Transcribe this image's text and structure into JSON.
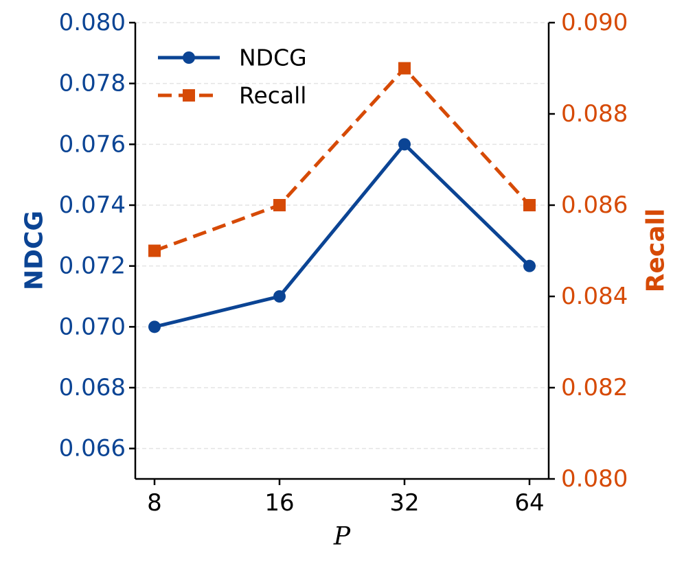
{
  "chart_data": {
    "type": "line",
    "categories": [
      "8",
      "16",
      "32",
      "64"
    ],
    "xlabel": "P",
    "left_axis": {
      "label": "NDCG",
      "ylim": [
        0.065,
        0.08
      ],
      "ticks": [
        "0.066",
        "0.068",
        "0.070",
        "0.072",
        "0.074",
        "0.076",
        "0.078",
        "0.080"
      ],
      "color": "#0b4494"
    },
    "right_axis": {
      "label": "Recall",
      "ylim": [
        0.08,
        0.09
      ],
      "ticks": [
        "0.080",
        "0.082",
        "0.084",
        "0.086",
        "0.088",
        "0.090"
      ],
      "color": "#d64a06"
    },
    "series": [
      {
        "name": "NDCG",
        "axis": "left",
        "values": [
          0.07,
          0.071,
          0.076,
          0.072
        ],
        "color": "#0b4494",
        "style": "solid",
        "marker": "circle"
      },
      {
        "name": "Recall",
        "axis": "right",
        "values": [
          0.085,
          0.086,
          0.089,
          0.086
        ],
        "color": "#d64a06",
        "style": "dashed",
        "marker": "square"
      }
    ],
    "grid": true,
    "legend_position": "top-left"
  }
}
